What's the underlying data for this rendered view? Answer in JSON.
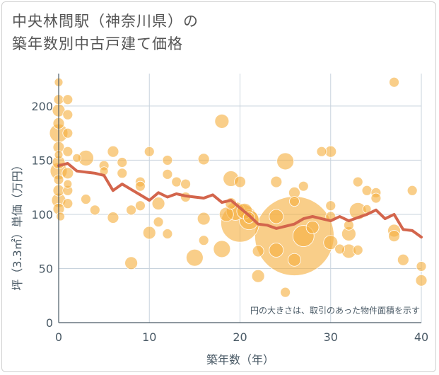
{
  "title": {
    "line1": "中央林間駅（神奈川県）の",
    "line2": "築年数別中古戸建て価格"
  },
  "chart_data": {
    "type": "scatter",
    "xlabel": "築年数（年）",
    "ylabel": "坪（3.3㎡）単価（万円）",
    "xlim": [
      0,
      40
    ],
    "ylim": [
      0,
      230
    ],
    "xticks": [
      0,
      10,
      20,
      30,
      40
    ],
    "yticks": [
      0,
      50,
      100,
      150,
      200
    ],
    "grid": true,
    "note": "円の大きさは、取引のあった物件面積を示す",
    "colors": {
      "bubble": "#f5b041",
      "line": "#d3654c",
      "grid": "#c8d3dd"
    },
    "trend_line": {
      "x": [
        0,
        1,
        2,
        3,
        4,
        5,
        6,
        7,
        8,
        9,
        10,
        11,
        12,
        13,
        14,
        15,
        16,
        17,
        18,
        19,
        20,
        21,
        22,
        23,
        24,
        25,
        26,
        27,
        28,
        29,
        30,
        31,
        32,
        33,
        34,
        35,
        36,
        37,
        38,
        39,
        40
      ],
      "y": [
        145,
        147,
        140,
        139,
        138,
        136,
        122,
        128,
        123,
        118,
        113,
        120,
        116,
        119,
        117,
        116,
        115,
        118,
        111,
        113,
        106,
        99,
        91,
        90,
        87,
        89,
        91,
        96,
        98,
        96,
        94,
        98,
        94,
        97,
        100,
        104,
        96,
        100,
        86,
        85,
        79
      ]
    },
    "bubbles": [
      {
        "x": 0,
        "y": 222,
        "size": 6
      },
      {
        "x": 0,
        "y": 206,
        "size": 7
      },
      {
        "x": 0,
        "y": 196,
        "size": 9
      },
      {
        "x": 0,
        "y": 184,
        "size": 8
      },
      {
        "x": 0,
        "y": 175,
        "size": 13
      },
      {
        "x": 0,
        "y": 162,
        "size": 8
      },
      {
        "x": 0,
        "y": 155,
        "size": 6
      },
      {
        "x": 0,
        "y": 148,
        "size": 9
      },
      {
        "x": 0,
        "y": 140,
        "size": 12
      },
      {
        "x": 0,
        "y": 132,
        "size": 7
      },
      {
        "x": 0,
        "y": 122,
        "size": 8
      },
      {
        "x": 0,
        "y": 113,
        "size": 10
      },
      {
        "x": 0,
        "y": 105,
        "size": 8
      },
      {
        "x": 0.2,
        "y": 98,
        "size": 6
      },
      {
        "x": 1,
        "y": 206,
        "size": 7
      },
      {
        "x": 1,
        "y": 192,
        "size": 7
      },
      {
        "x": 1,
        "y": 175,
        "size": 7
      },
      {
        "x": 1,
        "y": 158,
        "size": 7
      },
      {
        "x": 1,
        "y": 138,
        "size": 8
      },
      {
        "x": 1,
        "y": 128,
        "size": 6
      },
      {
        "x": 1,
        "y": 122,
        "size": 7
      },
      {
        "x": 1,
        "y": 110,
        "size": 7
      },
      {
        "x": 2,
        "y": 152,
        "size": 6
      },
      {
        "x": 3,
        "y": 152,
        "size": 11
      },
      {
        "x": 3,
        "y": 114,
        "size": 7
      },
      {
        "x": 4,
        "y": 104,
        "size": 7
      },
      {
        "x": 5,
        "y": 145,
        "size": 7
      },
      {
        "x": 5,
        "y": 140,
        "size": 6
      },
      {
        "x": 6,
        "y": 158,
        "size": 8
      },
      {
        "x": 6,
        "y": 97,
        "size": 8
      },
      {
        "x": 7,
        "y": 148,
        "size": 7
      },
      {
        "x": 7,
        "y": 138,
        "size": 7
      },
      {
        "x": 8,
        "y": 104,
        "size": 7
      },
      {
        "x": 8,
        "y": 55,
        "size": 9
      },
      {
        "x": 9,
        "y": 130,
        "size": 7
      },
      {
        "x": 9,
        "y": 126,
        "size": 7
      },
      {
        "x": 9,
        "y": 108,
        "size": 7
      },
      {
        "x": 10,
        "y": 158,
        "size": 7
      },
      {
        "x": 10,
        "y": 83,
        "size": 9
      },
      {
        "x": 11,
        "y": 110,
        "size": 9
      },
      {
        "x": 11,
        "y": 93,
        "size": 7
      },
      {
        "x": 12,
        "y": 150,
        "size": 7
      },
      {
        "x": 12,
        "y": 137,
        "size": 7
      },
      {
        "x": 12,
        "y": 82,
        "size": 7
      },
      {
        "x": 13,
        "y": 130,
        "size": 7
      },
      {
        "x": 14,
        "y": 128,
        "size": 7
      },
      {
        "x": 14,
        "y": 116,
        "size": 7
      },
      {
        "x": 15,
        "y": 60,
        "size": 12
      },
      {
        "x": 16,
        "y": 151,
        "size": 8
      },
      {
        "x": 16,
        "y": 96,
        "size": 9
      },
      {
        "x": 16,
        "y": 76,
        "size": 7
      },
      {
        "x": 18,
        "y": 186,
        "size": 10
      },
      {
        "x": 18,
        "y": 68,
        "size": 12
      },
      {
        "x": 18.5,
        "y": 100,
        "size": 10
      },
      {
        "x": 19,
        "y": 133,
        "size": 11
      },
      {
        "x": 19,
        "y": 110,
        "size": 8
      },
      {
        "x": 19.5,
        "y": 103,
        "size": 13
      },
      {
        "x": 20,
        "y": 130,
        "size": 8
      },
      {
        "x": 20,
        "y": 92,
        "size": 27
      },
      {
        "x": 20.5,
        "y": 103,
        "size": 11
      },
      {
        "x": 21,
        "y": 95,
        "size": 14
      },
      {
        "x": 21,
        "y": 97,
        "size": 8
      },
      {
        "x": 22,
        "y": 66,
        "size": 8
      },
      {
        "x": 22,
        "y": 43,
        "size": 9
      },
      {
        "x": 24,
        "y": 130,
        "size": 8
      },
      {
        "x": 24,
        "y": 98,
        "size": 10
      },
      {
        "x": 24,
        "y": 67,
        "size": 10
      },
      {
        "x": 25,
        "y": 149,
        "size": 12
      },
      {
        "x": 25,
        "y": 28,
        "size": 7
      },
      {
        "x": 26,
        "y": 80,
        "size": 56
      },
      {
        "x": 26,
        "y": 120,
        "size": 8
      },
      {
        "x": 26,
        "y": 112,
        "size": 7
      },
      {
        "x": 26,
        "y": 58,
        "size": 9
      },
      {
        "x": 27,
        "y": 126,
        "size": 7
      },
      {
        "x": 27,
        "y": 80,
        "size": 15
      },
      {
        "x": 28,
        "y": 88,
        "size": 9
      },
      {
        "x": 29,
        "y": 158,
        "size": 7
      },
      {
        "x": 30,
        "y": 158,
        "size": 8
      },
      {
        "x": 30,
        "y": 108,
        "size": 7
      },
      {
        "x": 30,
        "y": 98,
        "size": 7
      },
      {
        "x": 30,
        "y": 74,
        "size": 10
      },
      {
        "x": 31,
        "y": 68,
        "size": 7
      },
      {
        "x": 32,
        "y": 90,
        "size": 7
      },
      {
        "x": 32,
        "y": 82,
        "size": 10
      },
      {
        "x": 32,
        "y": 66,
        "size": 10
      },
      {
        "x": 33,
        "y": 130,
        "size": 7
      },
      {
        "x": 33,
        "y": 103,
        "size": 12
      },
      {
        "x": 33,
        "y": 67,
        "size": 7
      },
      {
        "x": 34,
        "y": 122,
        "size": 7
      },
      {
        "x": 34,
        "y": 105,
        "size": 6
      },
      {
        "x": 35,
        "y": 120,
        "size": 7
      },
      {
        "x": 35,
        "y": 115,
        "size": 7
      },
      {
        "x": 37,
        "y": 222,
        "size": 7
      },
      {
        "x": 37,
        "y": 85,
        "size": 9
      },
      {
        "x": 37,
        "y": 80,
        "size": 8
      },
      {
        "x": 38,
        "y": 58,
        "size": 8
      },
      {
        "x": 39,
        "y": 122,
        "size": 7
      },
      {
        "x": 40,
        "y": 52,
        "size": 7
      },
      {
        "x": 40,
        "y": 39,
        "size": 8
      }
    ]
  }
}
